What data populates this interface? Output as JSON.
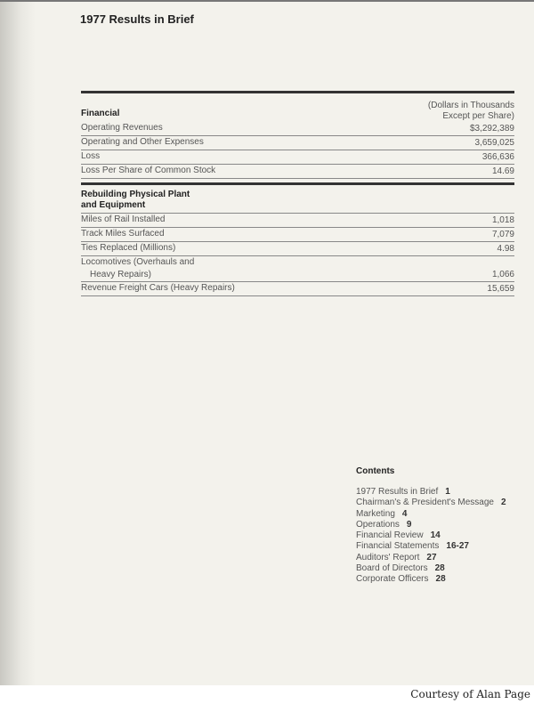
{
  "title": "1977 Results in Brief",
  "financial": {
    "heading": "Financial",
    "units_line1": "(Dollars in Thousands",
    "units_line2": "Except per Share)",
    "rows": [
      {
        "label": "Operating Revenues",
        "value": "$3,292,389"
      },
      {
        "label": "Operating and Other Expenses",
        "value": "3,659,025"
      },
      {
        "label": "Loss",
        "value": "366,636"
      },
      {
        "label": "Loss Per Share of Common Stock",
        "value": "14.69"
      }
    ]
  },
  "rebuilding": {
    "heading_line1": "Rebuilding Physical Plant",
    "heading_line2": "and Equipment",
    "rows": [
      {
        "label": "Miles of Rail Installed",
        "value": "1,018"
      },
      {
        "label": "Track Miles Surfaced",
        "value": "7,079"
      },
      {
        "label": "Ties Replaced (Millions)",
        "value": "4.98"
      },
      {
        "label": "Locomotives (Overhauls and",
        "label2": "Heavy Repairs)",
        "value": "1,066"
      },
      {
        "label": "Revenue Freight Cars (Heavy Repairs)",
        "value": "15,659"
      }
    ]
  },
  "contents": {
    "heading": "Contents",
    "items": [
      {
        "label": "1977 Results in Brief",
        "page": "1"
      },
      {
        "label": "Chairman's & President's Message",
        "page": "2"
      },
      {
        "label": "Marketing",
        "page": "4"
      },
      {
        "label": "Operations",
        "page": "9"
      },
      {
        "label": "Financial Review",
        "page": "14"
      },
      {
        "label": "Financial Statements",
        "page": "16-27"
      },
      {
        "label": "Auditors' Report",
        "page": "27"
      },
      {
        "label": "Board of Directors",
        "page": "28"
      },
      {
        "label": "Corporate Officers",
        "page": "28"
      }
    ]
  },
  "courtesy": "Courtesy of Alan Page"
}
